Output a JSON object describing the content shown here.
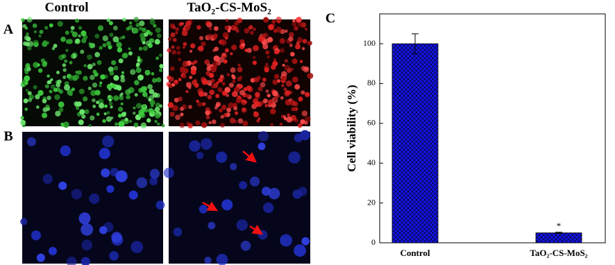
{
  "panels": {
    "column_headers": [
      "Control",
      "TaO₂-CS-MoS₂"
    ],
    "row_labels": [
      "A",
      "B"
    ]
  },
  "chart_data": {
    "type": "bar",
    "panel_label": "C",
    "ylabel": "Cell viability (%)",
    "categories": [
      "Control",
      "TaO₂-CS-MoS₂"
    ],
    "values": [
      100,
      5
    ],
    "errors": [
      5,
      0.3
    ],
    "annotations": [
      null,
      "*"
    ],
    "color": "#1414e6",
    "ylim": [
      0,
      115
    ],
    "yticks": [
      0,
      20,
      40,
      60,
      80,
      100
    ],
    "grid": false
  }
}
